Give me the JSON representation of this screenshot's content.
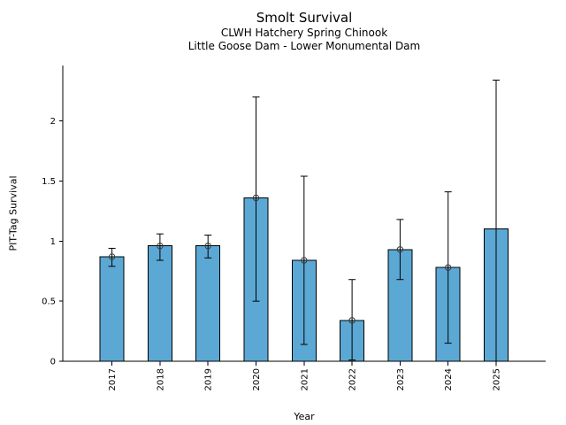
{
  "chart_data": {
    "type": "bar",
    "title": "Smolt Survival",
    "subtitle_line1": "CLWH Hatchery Spring Chinook",
    "subtitle_line2": "Little Goose Dam - Lower Monumental Dam",
    "xlabel": "Year",
    "ylabel": "PIT-Tag Survival",
    "categories": [
      "2017",
      "2018",
      "2019",
      "2020",
      "2021",
      "2022",
      "2023",
      "2024",
      "2025"
    ],
    "series": [
      {
        "name": "PIT-Tag Survival",
        "values": [
          0.87,
          0.96,
          0.96,
          1.36,
          0.84,
          0.34,
          0.93,
          0.78,
          1.1
        ],
        "error_low": [
          0.79,
          0.84,
          0.86,
          0.5,
          0.14,
          0.01,
          0.68,
          0.15,
          -0.04
        ],
        "error_high": [
          0.94,
          1.06,
          1.05,
          2.2,
          1.54,
          0.68,
          1.18,
          1.41,
          2.34
        ],
        "top_marker": [
          true,
          true,
          true,
          true,
          true,
          true,
          true,
          true,
          false
        ],
        "lower_cap": [
          true,
          true,
          true,
          true,
          true,
          true,
          true,
          true,
          false
        ]
      }
    ],
    "yticks": [
      {
        "value": 0,
        "label": "0"
      },
      {
        "value": 0.5,
        "label": "0.5"
      },
      {
        "value": 1,
        "label": "1"
      },
      {
        "value": 1.5,
        "label": "1.5"
      },
      {
        "value": 2,
        "label": "2"
      }
    ],
    "ylim": [
      0,
      2.46
    ],
    "grid": false,
    "legend_position": "none",
    "bar_color": "#5BA8D4",
    "bar_edge_color": "#000000",
    "errorbar_color": "#000000",
    "marker_edge_color": "#3a3a3a",
    "axis_color": "#000000"
  }
}
